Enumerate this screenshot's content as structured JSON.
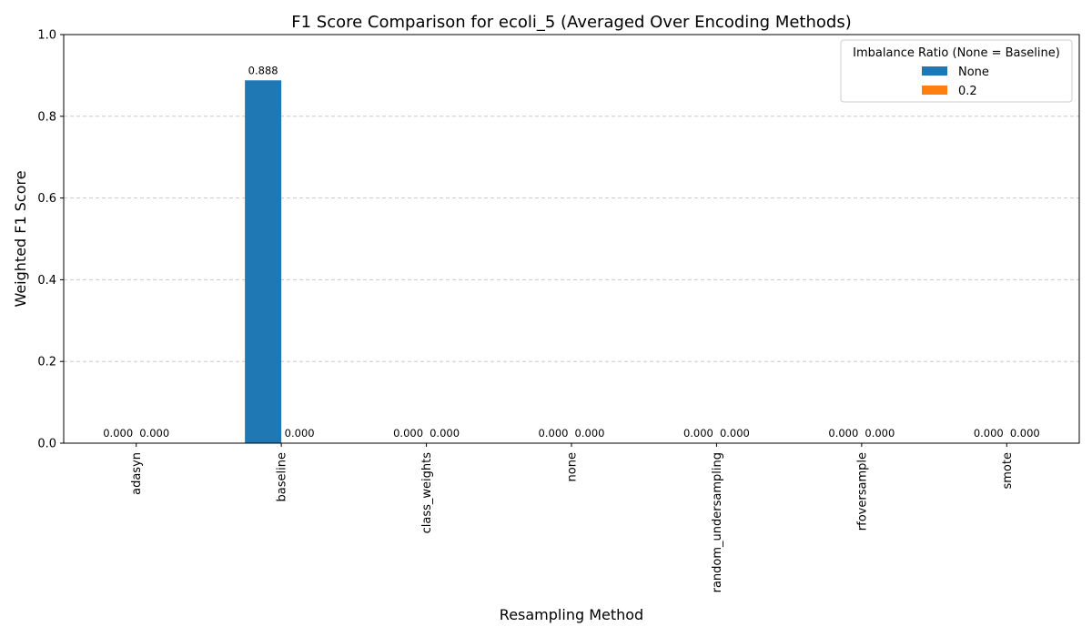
{
  "chart_data": {
    "type": "bar",
    "title": "F1 Score Comparison for ecoli_5 (Averaged Over Encoding Methods)",
    "xlabel": "Resampling Method",
    "ylabel": "Weighted F1 Score",
    "categories": [
      "adasyn",
      "baseline",
      "class_weights",
      "none",
      "random_undersampling",
      "rfoversample",
      "smote"
    ],
    "series": [
      {
        "name": "None",
        "color": "#1f77b4",
        "values": [
          0.0,
          0.888,
          0.0,
          0.0,
          0.0,
          0.0,
          0.0
        ]
      },
      {
        "name": "0.2",
        "color": "#ff7f0e",
        "values": [
          0.0,
          0.0,
          0.0,
          0.0,
          0.0,
          0.0,
          0.0
        ]
      }
    ],
    "data_labels": [
      [
        "0.000",
        "0.888",
        "0.000",
        "0.000",
        "0.000",
        "0.000",
        "0.000"
      ],
      [
        "0.000",
        "0.000",
        "0.000",
        "0.000",
        "0.000",
        "0.000",
        "0.000"
      ]
    ],
    "ylim": [
      0,
      1
    ],
    "yticks": [
      0.0,
      0.2,
      0.4,
      0.6,
      0.8,
      1.0
    ],
    "ytick_labels": [
      "0.0",
      "0.2",
      "0.4",
      "0.6",
      "0.8",
      "1.0"
    ],
    "grid": "y-dashed",
    "legend": {
      "title": "Imbalance Ratio (None = Baseline)",
      "placement": "top-right"
    }
  }
}
